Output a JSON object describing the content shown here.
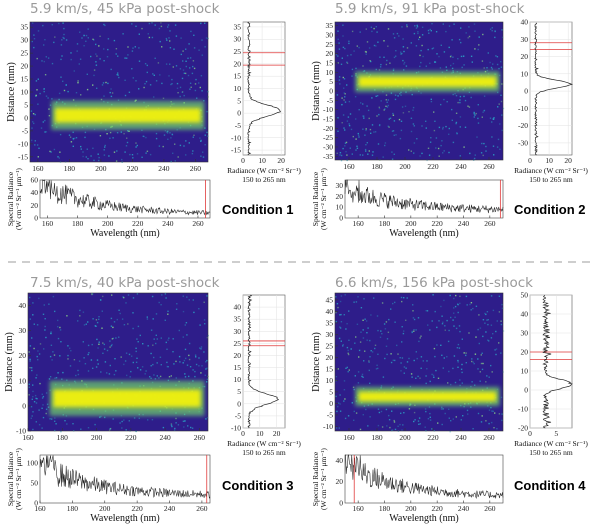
{
  "divider_color": "#bdbdbd",
  "colors": {
    "image_background": "#2e1d8a",
    "noise": "#2aa6c8",
    "band": "#f2f20e",
    "band_halo": "#6fd36a",
    "trace": "#222222",
    "marker_red": "#e03a3a"
  },
  "chart_data": [
    {
      "type": "heatmap",
      "title": "5.9 km/s, 45 kPa post-shock",
      "condition_label": "Condition 1",
      "image": {
        "ylabel": "Distance (mm)",
        "xlabel": "",
        "xlim": [
          155,
          268
        ],
        "ylim": [
          -17,
          37
        ],
        "xticks": [
          160,
          180,
          200,
          220,
          240,
          260
        ],
        "yticks": [
          -15,
          -10,
          -5,
          0,
          5,
          10,
          15,
          20,
          25,
          30,
          35
        ],
        "emission_center_mm": 1,
        "emission_halfwidth_mm": 4,
        "grid": false
      },
      "profile": {
        "xlabel_line1": "Radiance (W cm⁻² Sr⁻¹)",
        "xlabel_line2": "150 to 265 nm",
        "xlim": [
          0,
          22
        ],
        "ylim": [
          -17,
          37
        ],
        "xticks": [
          0,
          10,
          20
        ],
        "yticks": [
          -15,
          -10,
          -5,
          0,
          5,
          10,
          15,
          20,
          25,
          30,
          35
        ],
        "peak_mm": 1,
        "peak_value": 19,
        "background_value": 2.5,
        "red_lines_mm": [
          19.5,
          24.5
        ],
        "grid": true
      },
      "spectrum": {
        "xlabel": "Wavelength (nm)",
        "ylabel": "Spectral Radiance\n(W cm⁻² Sr⁻¹ μm⁻¹)",
        "xlim": [
          155,
          268
        ],
        "ylim": [
          0,
          60
        ],
        "xticks": [
          160,
          180,
          200,
          220,
          240,
          260
        ],
        "yticks": [
          0,
          20,
          40,
          60
        ],
        "start_value": 55,
        "end_value": 6,
        "red_line_nm": 265,
        "grid": false
      }
    },
    {
      "type": "heatmap",
      "title": "5.9 km/s, 91 kPa post-shock",
      "condition_label": "Condition 2",
      "image": {
        "ylabel": "Distance (mm)",
        "xlabel": "",
        "xlim": [
          150,
          270
        ],
        "ylim": [
          -37,
          37
        ],
        "xticks": [
          160,
          180,
          200,
          220,
          240,
          260
        ],
        "yticks": [
          -35,
          -30,
          -25,
          -20,
          -15,
          -10,
          -5,
          0,
          5,
          10,
          15,
          20,
          25,
          30,
          35
        ],
        "emission_center_mm": 5,
        "emission_halfwidth_mm": 4,
        "grid": false
      },
      "profile": {
        "xlabel_line1": "Radiance (W cm⁻² Sr⁻¹)",
        "xlabel_line2": "150 to 265 nm",
        "xlim": [
          0,
          22
        ],
        "ylim": [
          -37,
          40
        ],
        "xticks": [
          0,
          10,
          20
        ],
        "yticks": [
          -30,
          -20,
          -10,
          0,
          10,
          20,
          30,
          40
        ],
        "peak_mm": 4,
        "peak_value": 21,
        "background_value": 2.5,
        "red_lines_mm": [
          24,
          28
        ],
        "grid": true
      },
      "spectrum": {
        "xlabel": "Wavelength (nm)",
        "ylabel": "Spectral Radiance\n(W cm⁻² Sr⁻¹ μm⁻¹)",
        "xlim": [
          150,
          270
        ],
        "ylim": [
          0,
          35
        ],
        "xticks": [
          160,
          180,
          200,
          220,
          240,
          260
        ],
        "yticks": [
          0,
          10,
          20,
          30
        ],
        "start_value": 28,
        "end_value": 7,
        "red_line_nm": 268,
        "grid": false
      }
    },
    {
      "type": "heatmap",
      "title": "7.5 km/s, 40 kPa post-shock",
      "condition_label": "Condition 3",
      "image": {
        "ylabel": "Distance (mm)",
        "xlabel": "",
        "xlim": [
          160,
          265
        ],
        "ylim": [
          -10,
          45
        ],
        "xticks": [
          160,
          180,
          200,
          220,
          240,
          260
        ],
        "yticks": [
          -10,
          0,
          10,
          20,
          30,
          40
        ],
        "emission_center_mm": 3,
        "emission_halfwidth_mm": 5,
        "grid": false
      },
      "profile": {
        "xlabel_line1": "Radiance (W cm⁻² Sr⁻¹)",
        "xlabel_line2": "150 to 265 nm",
        "xlim": [
          0,
          25
        ],
        "ylim": [
          -10,
          45
        ],
        "xticks": [
          0,
          10,
          20
        ],
        "yticks": [
          -10,
          -5,
          0,
          5,
          10,
          15,
          20,
          25,
          30,
          35,
          40
        ],
        "peak_mm": 2,
        "peak_value": 20,
        "background_value": 3,
        "red_lines_mm": [
          24,
          26
        ],
        "grid": true
      },
      "spectrum": {
        "xlabel": "Wavelength (nm)",
        "ylabel": "Spectral Radiance\n(W cm⁻² Sr⁻¹ μm⁻¹)",
        "xlim": [
          160,
          265
        ],
        "ylim": [
          0,
          120
        ],
        "xticks": [
          160,
          180,
          200,
          220,
          240,
          260
        ],
        "yticks": [
          0,
          50,
          100
        ],
        "start_value": 95,
        "end_value": 18,
        "red_line_nm": 263,
        "grid": false
      }
    },
    {
      "type": "heatmap",
      "title": "6.6 km/s, 156 kPa post-shock",
      "condition_label": "Condition 4",
      "image": {
        "ylabel": "Distance (mm)",
        "xlabel": "",
        "xlim": [
          150,
          270
        ],
        "ylim": [
          -12,
          48
        ],
        "xticks": [
          160,
          180,
          200,
          220,
          240,
          260
        ],
        "yticks": [
          -10,
          -5,
          0,
          5,
          10,
          15,
          20,
          25,
          30,
          35,
          40,
          45
        ],
        "emission_center_mm": 3,
        "emission_halfwidth_mm": 3,
        "grid": false
      },
      "profile": {
        "xlabel_line1": "Radiance (W cm⁻² Sr⁻¹)",
        "xlabel_line2": "150 to 265 nm",
        "xlim": [
          0,
          8
        ],
        "ylim": [
          -20,
          50
        ],
        "xticks": [
          0,
          5
        ],
        "yticks": [
          -20,
          -10,
          0,
          10,
          20,
          30,
          40,
          50
        ],
        "peak_mm": 3,
        "peak_value": 7.5,
        "background_value": 2.5,
        "red_lines_mm": [
          16,
          20
        ],
        "grid": true
      },
      "spectrum": {
        "xlabel": "Wavelength (nm)",
        "ylabel": "Spectral Radiance\n(W cm⁻² Sr⁻¹ μm⁻¹)",
        "xlim": [
          150,
          270
        ],
        "ylim": [
          0,
          45
        ],
        "xticks": [
          160,
          180,
          200,
          220,
          240,
          260
        ],
        "yticks": [
          0,
          20,
          40
        ],
        "start_value": 38,
        "end_value": 6,
        "red_line_nm": 157,
        "grid": false
      }
    }
  ]
}
